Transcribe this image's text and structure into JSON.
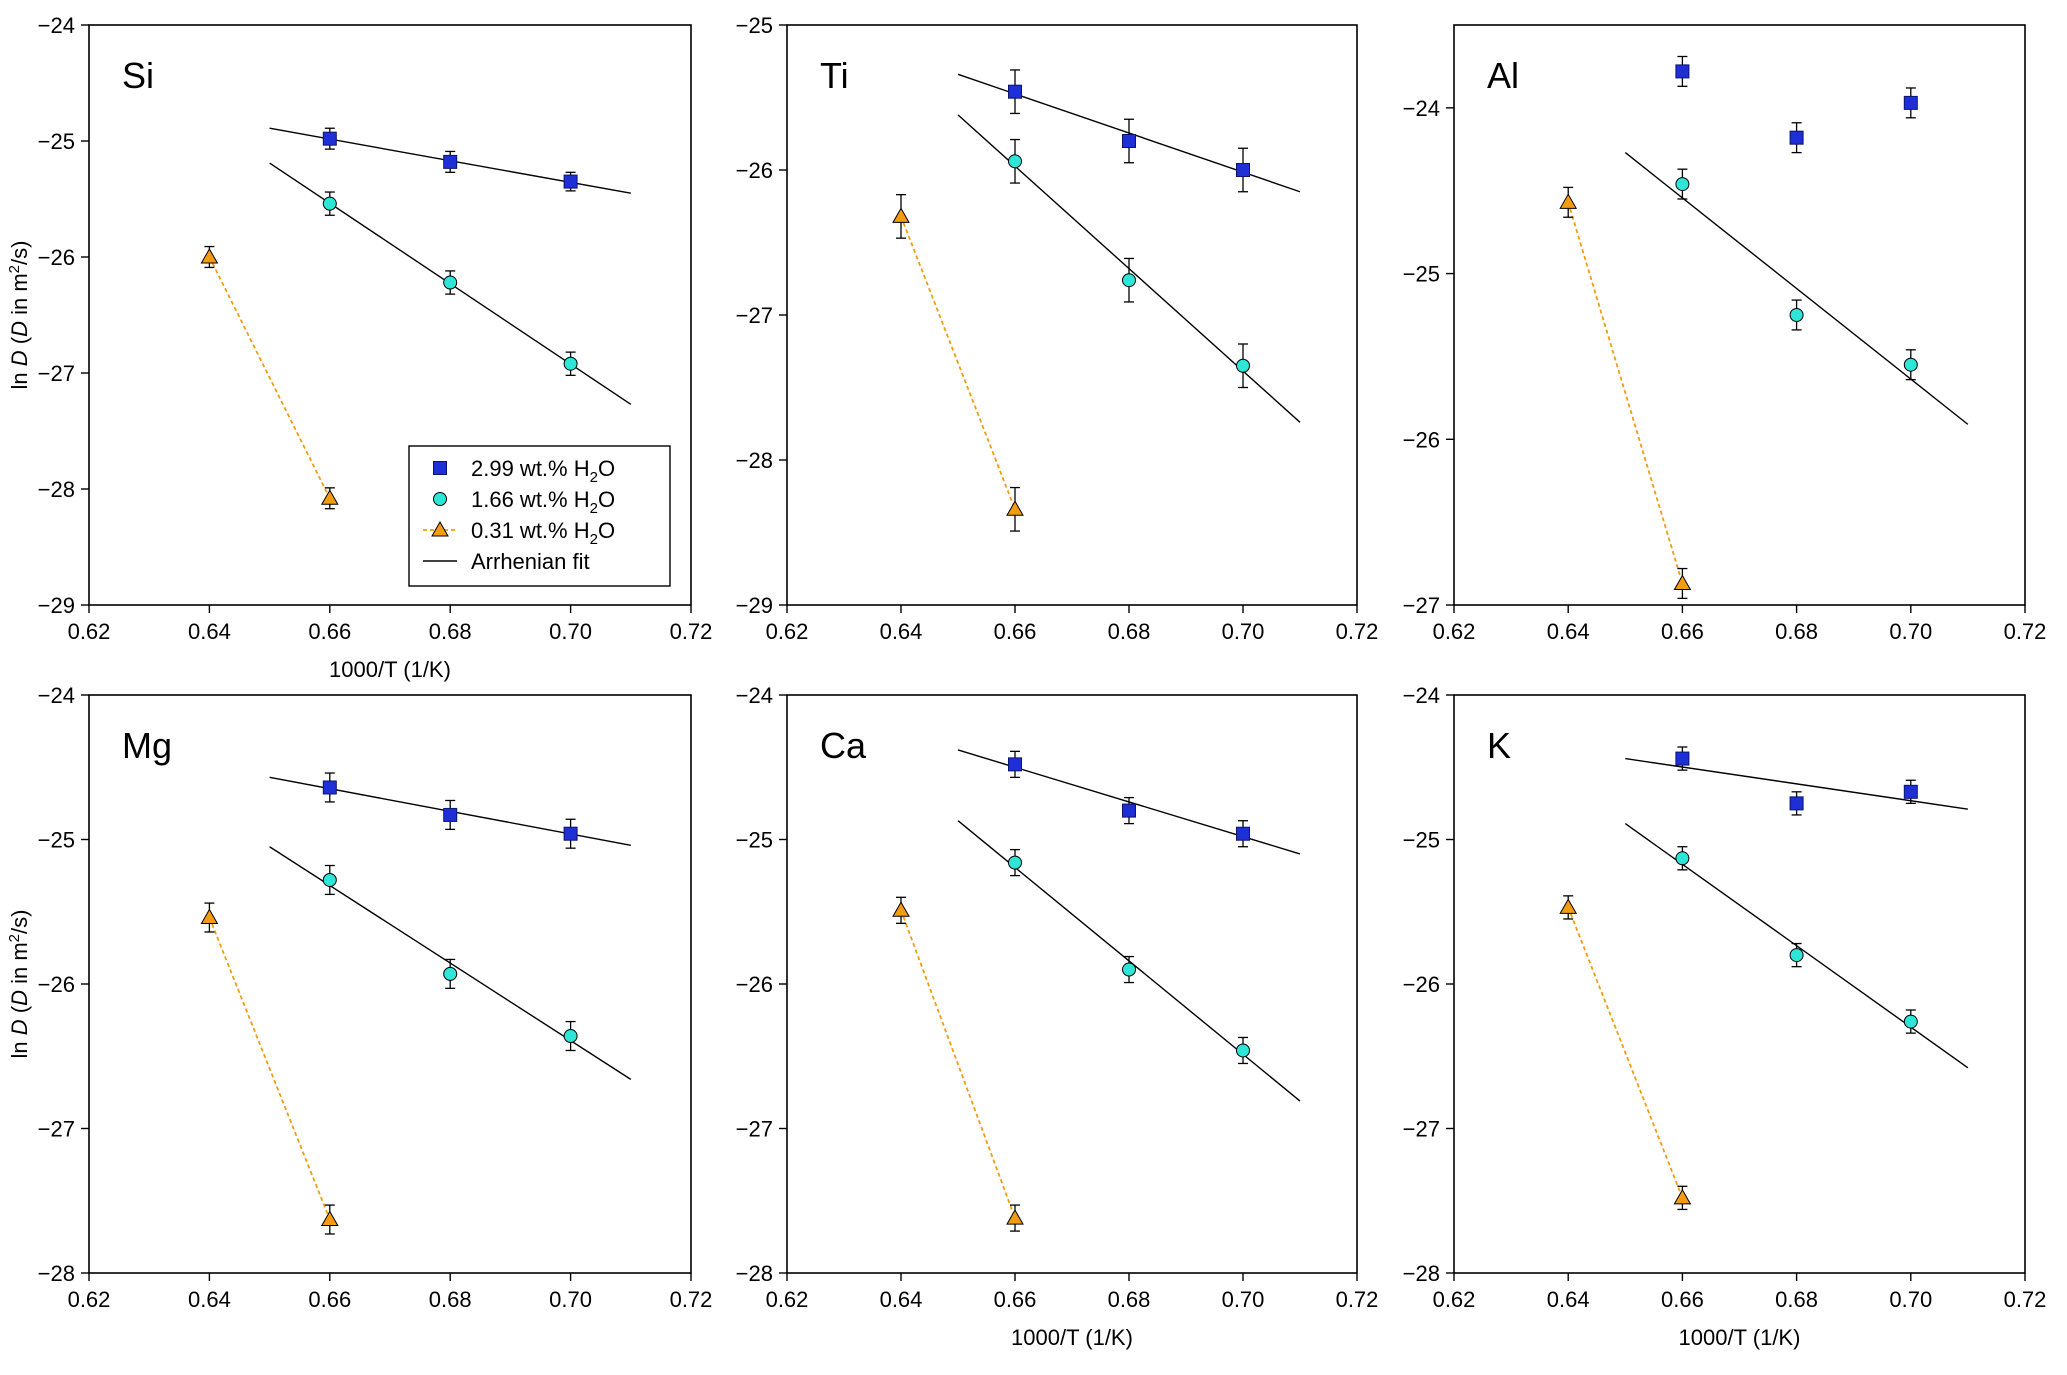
{
  "chart_data": [
    {
      "type": "scatter",
      "title": "Si",
      "xlabel": "1000/T (1/K)",
      "ylabel": "ln D (D in m²/s)",
      "xlim": [
        0.62,
        0.72
      ],
      "ylim": [
        -29,
        -24
      ],
      "xticks": [
        "0.62",
        "0.64",
        "0.66",
        "0.68",
        "0.70",
        "0.72"
      ],
      "yticks": [
        "−29",
        "−28",
        "−27",
        "−26",
        "−25",
        "−24"
      ],
      "series": [
        {
          "name": "2.99 wt.% H2O",
          "marker": "square",
          "x": [
            0.66,
            0.68,
            0.7
          ],
          "y": [
            -24.98,
            -25.18,
            -25.35
          ],
          "err": [
            0.09,
            0.09,
            0.08
          ],
          "fit": [
            [
              0.65,
              -24.89
            ],
            [
              0.71,
              -25.45
            ]
          ]
        },
        {
          "name": "1.66 wt.% H2O",
          "marker": "circle",
          "x": [
            0.66,
            0.68,
            0.7
          ],
          "y": [
            -25.54,
            -26.22,
            -26.92
          ],
          "err": [
            0.1,
            0.1,
            0.1
          ],
          "fit": [
            [
              0.65,
              -25.19
            ],
            [
              0.71,
              -27.27
            ]
          ]
        },
        {
          "name": "0.31 wt.% H2O",
          "marker": "triangle",
          "x": [
            0.64,
            0.66
          ],
          "y": [
            -26.0,
            -28.08
          ],
          "err": [
            0.09,
            0.09
          ],
          "dashed": true
        }
      ]
    },
    {
      "type": "scatter",
      "title": "Ti",
      "xlabel": "",
      "ylabel": "",
      "xlim": [
        0.62,
        0.72
      ],
      "ylim": [
        -29,
        -25
      ],
      "xticks": [
        "0.62",
        "0.64",
        "0.66",
        "0.68",
        "0.70",
        "0.72"
      ],
      "yticks": [
        "−29",
        "−28",
        "−27",
        "−26",
        "−25"
      ],
      "series": [
        {
          "name": "2.99 wt.% H2O",
          "marker": "square",
          "x": [
            0.66,
            0.68,
            0.7
          ],
          "y": [
            -25.46,
            -25.8,
            -26.0
          ],
          "err": [
            0.15,
            0.15,
            0.15
          ],
          "fit": [
            [
              0.65,
              -25.34
            ],
            [
              0.71,
              -26.15
            ]
          ]
        },
        {
          "name": "1.66 wt.% H2O",
          "marker": "circle",
          "x": [
            0.66,
            0.68,
            0.7
          ],
          "y": [
            -25.94,
            -26.76,
            -27.35
          ],
          "err": [
            0.15,
            0.15,
            0.15
          ],
          "fit": [
            [
              0.65,
              -25.62
            ],
            [
              0.71,
              -27.74
            ]
          ]
        },
        {
          "name": "0.31 wt.% H2O",
          "marker": "triangle",
          "x": [
            0.64,
            0.66
          ],
          "y": [
            -26.32,
            -28.34
          ],
          "err": [
            0.15,
            0.15
          ],
          "dashed": true
        }
      ]
    },
    {
      "type": "scatter",
      "title": "Al",
      "xlabel": "",
      "ylabel": "",
      "xlim": [
        0.62,
        0.72
      ],
      "ylim": [
        -27,
        -23.5
      ],
      "xticks": [
        "0.62",
        "0.64",
        "0.66",
        "0.68",
        "0.70",
        "0.72"
      ],
      "yticks": [
        "−27",
        "−26",
        "−25",
        "−24"
      ],
      "series": [
        {
          "name": "2.99 wt.% H2O",
          "marker": "square",
          "x": [
            0.66,
            0.68,
            0.7
          ],
          "y": [
            -23.78,
            -24.18,
            -23.97
          ],
          "err": [
            0.09,
            0.09,
            0.09
          ]
        },
        {
          "name": "1.66 wt.% H2O",
          "marker": "circle",
          "x": [
            0.66,
            0.68,
            0.7
          ],
          "y": [
            -24.46,
            -25.25,
            -25.55
          ],
          "err": [
            0.09,
            0.09,
            0.09
          ],
          "fit": [
            [
              0.65,
              -24.27
            ],
            [
              0.71,
              -25.91
            ]
          ]
        },
        {
          "name": "0.31 wt.% H2O",
          "marker": "triangle",
          "x": [
            0.64,
            0.66
          ],
          "y": [
            -24.57,
            -26.87
          ],
          "err": [
            0.09,
            0.09
          ],
          "dashed": true
        }
      ]
    },
    {
      "type": "scatter",
      "title": "Mg",
      "xlabel": "",
      "ylabel": "ln D (D in m²/s)",
      "xlim": [
        0.62,
        0.72
      ],
      "ylim": [
        -28,
        -24
      ],
      "xticks": [
        "0.62",
        "0.64",
        "0.66",
        "0.68",
        "0.70",
        "0.72"
      ],
      "yticks": [
        "−28",
        "−27",
        "−26",
        "−25",
        "−24"
      ],
      "series": [
        {
          "name": "2.99 wt.% H2O",
          "marker": "square",
          "x": [
            0.66,
            0.68,
            0.7
          ],
          "y": [
            -24.64,
            -24.83,
            -24.96
          ],
          "err": [
            0.1,
            0.1,
            0.1
          ],
          "fit": [
            [
              0.65,
              -24.57
            ],
            [
              0.71,
              -25.04
            ]
          ]
        },
        {
          "name": "1.66 wt.% H2O",
          "marker": "circle",
          "x": [
            0.66,
            0.68,
            0.7
          ],
          "y": [
            -25.28,
            -25.93,
            -26.36
          ],
          "err": [
            0.1,
            0.1,
            0.1
          ],
          "fit": [
            [
              0.65,
              -25.05
            ],
            [
              0.71,
              -26.66
            ]
          ]
        },
        {
          "name": "0.31 wt.% H2O",
          "marker": "triangle",
          "x": [
            0.64,
            0.66
          ],
          "y": [
            -25.54,
            -27.63
          ],
          "err": [
            0.1,
            0.1
          ],
          "dashed": true
        }
      ]
    },
    {
      "type": "scatter",
      "title": "Ca",
      "xlabel": "1000/T (1/K)",
      "ylabel": "",
      "xlim": [
        0.62,
        0.72
      ],
      "ylim": [
        -28,
        -24
      ],
      "xticks": [
        "0.62",
        "0.64",
        "0.66",
        "0.68",
        "0.70",
        "0.72"
      ],
      "yticks": [
        "−28",
        "−27",
        "−26",
        "−25",
        "−24"
      ],
      "series": [
        {
          "name": "2.99 wt.% H2O",
          "marker": "square",
          "x": [
            0.66,
            0.68,
            0.7
          ],
          "y": [
            -24.48,
            -24.8,
            -24.96
          ],
          "err": [
            0.09,
            0.09,
            0.09
          ],
          "fit": [
            [
              0.65,
              -24.38
            ],
            [
              0.71,
              -25.1
            ]
          ]
        },
        {
          "name": "1.66 wt.% H2O",
          "marker": "circle",
          "x": [
            0.66,
            0.68,
            0.7
          ],
          "y": [
            -25.16,
            -25.9,
            -26.46
          ],
          "err": [
            0.09,
            0.09,
            0.09
          ],
          "fit": [
            [
              0.65,
              -24.87
            ],
            [
              0.71,
              -26.81
            ]
          ]
        },
        {
          "name": "0.31 wt.% H2O",
          "marker": "triangle",
          "x": [
            0.64,
            0.66
          ],
          "y": [
            -25.49,
            -27.62
          ],
          "err": [
            0.09,
            0.09
          ],
          "dashed": true
        }
      ]
    },
    {
      "type": "scatter",
      "title": "K",
      "xlabel": "1000/T (1/K)",
      "ylabel": "",
      "xlim": [
        0.62,
        0.72
      ],
      "ylim": [
        -28,
        -24
      ],
      "xticks": [
        "0.62",
        "0.64",
        "0.66",
        "0.68",
        "0.70",
        "0.72"
      ],
      "yticks": [
        "−28",
        "−27",
        "−26",
        "−25",
        "−24"
      ],
      "series": [
        {
          "name": "2.99 wt.% H2O",
          "marker": "square",
          "x": [
            0.66,
            0.68,
            0.7
          ],
          "y": [
            -24.44,
            -24.75,
            -24.67
          ],
          "err": [
            0.08,
            0.08,
            0.08
          ],
          "fit": [
            [
              0.65,
              -24.44
            ],
            [
              0.71,
              -24.79
            ]
          ]
        },
        {
          "name": "1.66 wt.% H2O",
          "marker": "circle",
          "x": [
            0.66,
            0.68,
            0.7
          ],
          "y": [
            -25.13,
            -25.8,
            -26.26
          ],
          "err": [
            0.08,
            0.08,
            0.08
          ],
          "fit": [
            [
              0.65,
              -24.89
            ],
            [
              0.71,
              -26.58
            ]
          ]
        },
        {
          "name": "0.31 wt.% H2O",
          "marker": "triangle",
          "x": [
            0.64,
            0.66
          ],
          "y": [
            -25.47,
            -27.48
          ],
          "err": [
            0.08,
            0.08
          ],
          "dashed": true
        }
      ]
    }
  ],
  "legend": {
    "items": [
      {
        "label": "2.99 wt.% H",
        "sub": "2",
        "tail": "O",
        "marker": "square"
      },
      {
        "label": "1.66 wt.% H",
        "sub": "2",
        "tail": "O",
        "marker": "circle"
      },
      {
        "label": "0.31 wt.% H",
        "sub": "2",
        "tail": "O",
        "marker": "triangle"
      },
      {
        "label": "Arrhenian fit",
        "sub": "",
        "tail": "",
        "marker": "line"
      }
    ]
  },
  "colors": {
    "square": "#1f2fd6",
    "circle": "#2de6d8",
    "triangle": "#f39c12",
    "axis": "#000000"
  }
}
